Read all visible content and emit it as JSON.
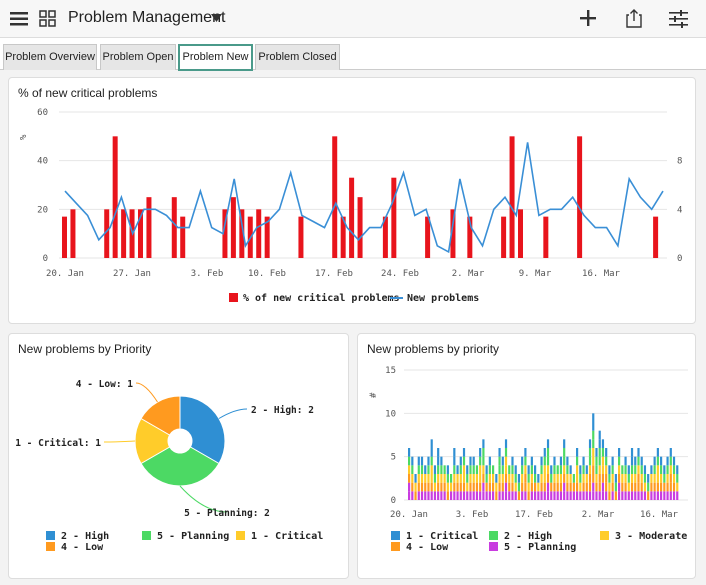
{
  "header": {
    "title": "Problem Management",
    "menu_icon": "hamburger-icon",
    "apps_icon": "grid-icon",
    "add_icon": "plus-icon",
    "share_icon": "share-icon",
    "filter_icon": "sliders-icon"
  },
  "tabs": [
    {
      "label": "Problem Overview",
      "active": false
    },
    {
      "label": "Problem Open",
      "active": false
    },
    {
      "label": "Problem New",
      "active": true
    },
    {
      "label": "Problem Closed",
      "active": false
    }
  ],
  "chart_data": [
    {
      "type": "bar+line",
      "title": "% of new critical problems",
      "ylabel": "%",
      "ylim": [
        0,
        60
      ],
      "yticks": [
        "0",
        "20",
        "40",
        "60"
      ],
      "y2lim": [
        0,
        12
      ],
      "y2ticks": [
        "0",
        "4",
        "8"
      ],
      "xticks": [
        "20. Jan",
        "27. Jan",
        "3. Feb",
        "10. Feb",
        "17. Feb",
        "24. Feb",
        "2. Mar",
        "9. Mar",
        "16. Mar"
      ],
      "bar_color": "#e8141c",
      "line_color": "#3a8fd6",
      "series": [
        {
          "name": "% of new critical problems",
          "kind": "bar",
          "values": [
            17,
            20,
            0,
            0,
            0,
            20,
            50,
            20,
            20,
            20,
            25,
            0,
            0,
            25,
            17,
            0,
            0,
            0,
            0,
            20,
            25,
            20,
            17,
            20,
            17,
            0,
            0,
            0,
            17,
            0,
            0,
            0,
            50,
            17,
            33,
            25,
            0,
            0,
            17,
            33,
            0,
            0,
            0,
            17,
            0,
            0,
            20,
            0,
            17,
            0,
            0,
            0,
            17,
            50,
            20,
            0,
            0,
            17,
            0,
            0,
            0,
            50,
            0,
            0,
            0,
            0,
            0,
            0,
            0,
            0,
            17,
            0
          ]
        },
        {
          "name": "New problems",
          "kind": "line",
          "values": [
            5.5,
            4.5,
            3.5,
            1.5,
            2.5,
            5,
            2,
            4,
            4,
            3.5,
            2.5,
            2.5,
            5.5,
            2.5,
            2,
            6.5,
            1,
            2.5,
            3,
            4,
            7,
            3.5,
            3,
            2.5,
            4.5,
            2.5,
            1.5,
            2.5,
            2.5,
            4.5,
            7,
            3.5,
            4,
            1,
            0.5,
            6.5,
            2.5,
            1,
            4,
            5,
            3.5,
            9.5,
            3.5,
            4,
            4,
            5,
            3.5,
            2.5,
            2.5,
            1,
            6.5,
            5,
            4,
            5.5
          ]
        }
      ],
      "legend": [
        "% of new critical problems",
        "New problems"
      ]
    },
    {
      "type": "pie",
      "title": "New problems by Priority",
      "slices": [
        {
          "label": "2 - High: 2",
          "name": "2 - High",
          "value": 2,
          "color": "#2f8fd3"
        },
        {
          "label": "5 - Planning: 2",
          "name": "5 - Planning",
          "value": 2,
          "color": "#4cd964"
        },
        {
          "label": "1 - Critical: 1",
          "name": "1 - Critical",
          "value": 1,
          "color": "#ffcc2a"
        },
        {
          "label": "4 - Low: 1",
          "name": "4 - Low",
          "value": 1,
          "color": "#ff9a1f"
        }
      ],
      "legend": [
        "2 - High",
        "5 - Planning",
        "1 - Critical",
        "4 - Low"
      ]
    },
    {
      "type": "stacked-bar",
      "title": "New problems by priority",
      "ylabel": "#",
      "ylim": [
        0,
        15
      ],
      "yticks": [
        "0",
        "5",
        "10",
        "15"
      ],
      "xticks": [
        "20. Jan",
        "3. Feb",
        "17. Feb",
        "2. Mar",
        "16. Mar"
      ],
      "series": [
        {
          "name": "1 - Critical",
          "color": "#2f8fd3"
        },
        {
          "name": "2 - High",
          "color": "#4cd964"
        },
        {
          "name": "3 - Moderate",
          "color": "#ffcc2a"
        },
        {
          "name": "4 - Low",
          "color": "#ff9a1f"
        },
        {
          "name": "5 - Planning",
          "color": "#c93ce0"
        }
      ],
      "totals": [
        6,
        5,
        3,
        5,
        5,
        4,
        5,
        7,
        4,
        6,
        5,
        4,
        4,
        3,
        6,
        4,
        5,
        6,
        4,
        5,
        5,
        4,
        6,
        7,
        4,
        5,
        4,
        3,
        6,
        5,
        7,
        4,
        5,
        4,
        3,
        5,
        6,
        4,
        5,
        4,
        3,
        5,
        6,
        7,
        4,
        5,
        4,
        5,
        7,
        5,
        4,
        3,
        6,
        4,
        5,
        4,
        7,
        10,
        6,
        8,
        7,
        6,
        4,
        5,
        3,
        6,
        4,
        5,
        4,
        6,
        5,
        6,
        5,
        4,
        3,
        4,
        5,
        6,
        5,
        4,
        5,
        6,
        5,
        4
      ],
      "legend": [
        "1 - Critical",
        "2 - High",
        "3 - Moderate",
        "4 - Low",
        "5 - Planning"
      ]
    }
  ]
}
